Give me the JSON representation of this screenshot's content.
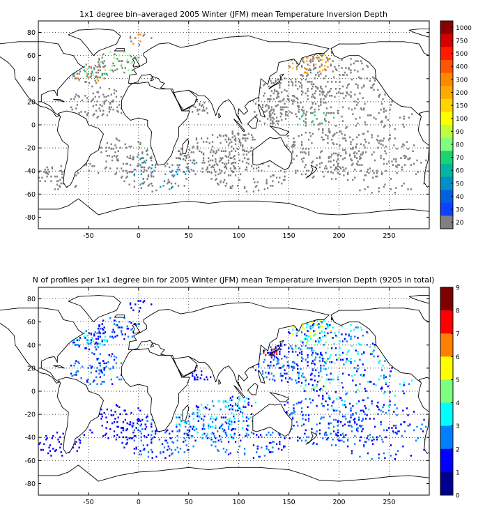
{
  "maps": [
    {
      "title": "1x1 degree bin–averaged 2005 Winter (JFM) mean Temperature Inversion Depth",
      "xlim": [
        -100,
        290
      ],
      "ylim": [
        -90,
        90
      ],
      "xticks": [
        -50,
        0,
        50,
        100,
        150,
        200,
        250
      ],
      "yticks": [
        80,
        60,
        40,
        20,
        0,
        -20,
        -40,
        -60,
        -80
      ],
      "colorbar": {
        "labels": [
          "1000",
          "750",
          "500",
          "400",
          "300",
          "200",
          "150",
          "100",
          "90",
          "80",
          "70",
          "60",
          "50",
          "40",
          "30",
          "20"
        ],
        "colors": [
          "#8b0000",
          "#d40000",
          "#ff1a00",
          "#ff5500",
          "#ff8800",
          "#ffaa00",
          "#ffd500",
          "#ffff00",
          "#bfff3f",
          "#80ff7f",
          "#1ad470",
          "#00b8a0",
          "#0090c8",
          "#0060e0",
          "#1040ff",
          "#808080"
        ]
      },
      "clusters": [
        {
          "lon": -50,
          "lat": 45,
          "r": 12,
          "count": 70,
          "colors": [
            "#808080",
            "#808080",
            "#808080",
            "#ff8800",
            "#ffd500",
            "#00b8a0"
          ]
        },
        {
          "lon": -20,
          "lat": 55,
          "r": 14,
          "count": 60,
          "colors": [
            "#808080",
            "#808080",
            "#80ff7f"
          ]
        },
        {
          "lon": 0,
          "lat": 75,
          "r": 8,
          "count": 12,
          "colors": [
            "#ff8800",
            "#808080"
          ]
        },
        {
          "lon": 170,
          "lat": 55,
          "r": 14,
          "count": 80,
          "colors": [
            "#808080",
            "#ff8800",
            "#ffaa00",
            "#ffd500",
            "#808080"
          ]
        },
        {
          "lon": 200,
          "lat": 45,
          "r": 30,
          "count": 150,
          "colors": [
            "#808080"
          ]
        },
        {
          "lon": 150,
          "lat": 25,
          "r": 25,
          "count": 150,
          "colors": [
            "#808080"
          ]
        },
        {
          "lon": 220,
          "lat": 10,
          "r": 40,
          "count": 160,
          "colors": [
            "#808080"
          ]
        },
        {
          "lon": 130,
          "lat": 10,
          "r": 12,
          "count": 50,
          "colors": [
            "#808080"
          ]
        },
        {
          "lon": -40,
          "lat": 20,
          "r": 20,
          "count": 90,
          "colors": [
            "#808080"
          ]
        },
        {
          "lon": -30,
          "lat": -25,
          "r": 25,
          "count": 100,
          "colors": [
            "#808080"
          ]
        },
        {
          "lon": 20,
          "lat": -40,
          "r": 25,
          "count": 120,
          "colors": [
            "#808080",
            "#808080",
            "#0090c8"
          ]
        },
        {
          "lon": 75,
          "lat": -25,
          "r": 25,
          "count": 150,
          "colors": [
            "#808080"
          ]
        },
        {
          "lon": 110,
          "lat": -40,
          "r": 25,
          "count": 110,
          "colors": [
            "#808080"
          ]
        },
        {
          "lon": 180,
          "lat": -25,
          "r": 30,
          "count": 140,
          "colors": [
            "#808080"
          ]
        },
        {
          "lon": 240,
          "lat": -35,
          "r": 35,
          "count": 140,
          "colors": [
            "#808080"
          ]
        },
        {
          "lon": -80,
          "lat": -45,
          "r": 15,
          "count": 50,
          "colors": [
            "#808080"
          ]
        },
        {
          "lon": 60,
          "lat": 15,
          "r": 8,
          "count": 20,
          "colors": [
            "#808080"
          ]
        },
        {
          "lon": 175,
          "lat": 5,
          "r": 12,
          "count": 25,
          "colors": [
            "#808080",
            "#1ad470"
          ]
        },
        {
          "lon": 100,
          "lat": -10,
          "r": 10,
          "count": 30,
          "colors": [
            "#808080"
          ]
        }
      ]
    },
    {
      "title": "N of profiles per 1x1 degree bin for 2005 Winter (JFM) mean Temperature Inversion Depth  (9205 in total)",
      "xlim": [
        -100,
        290
      ],
      "ylim": [
        -90,
        90
      ],
      "xticks": [
        -50,
        0,
        50,
        100,
        150,
        200,
        250
      ],
      "yticks": [
        80,
        60,
        40,
        20,
        0,
        -20,
        -40,
        -60,
        -80
      ],
      "colorbar": {
        "labels": [
          "9",
          "8",
          "7",
          "6",
          "5",
          "4",
          "3",
          "2",
          "1",
          "0"
        ],
        "colors": [
          "#7f0000",
          "#ff0000",
          "#ff7f00",
          "#ffff00",
          "#7fff7f",
          "#00ffff",
          "#007fff",
          "#0000ff",
          "#00008f"
        ]
      },
      "clusters": [
        {
          "lon": -50,
          "lat": 45,
          "r": 12,
          "count": 70,
          "colors": [
            "#0000ff",
            "#007fff",
            "#00ffff"
          ]
        },
        {
          "lon": -20,
          "lat": 55,
          "r": 14,
          "count": 60,
          "colors": [
            "#0000ff",
            "#007fff"
          ]
        },
        {
          "lon": 0,
          "lat": 75,
          "r": 8,
          "count": 12,
          "colors": [
            "#0000ff"
          ]
        },
        {
          "lon": 170,
          "lat": 55,
          "r": 14,
          "count": 80,
          "colors": [
            "#0000ff",
            "#00ffff",
            "#ffff00"
          ]
        },
        {
          "lon": 200,
          "lat": 45,
          "r": 30,
          "count": 150,
          "colors": [
            "#0000ff",
            "#007fff",
            "#00ffff",
            "#7fff7f"
          ]
        },
        {
          "lon": 150,
          "lat": 25,
          "r": 25,
          "count": 150,
          "colors": [
            "#0000ff",
            "#007fff"
          ]
        },
        {
          "lon": 220,
          "lat": 10,
          "r": 40,
          "count": 160,
          "colors": [
            "#0000ff",
            "#007fff",
            "#00ffff"
          ]
        },
        {
          "lon": 130,
          "lat": 35,
          "r": 5,
          "count": 20,
          "colors": [
            "#7f0000",
            "#ff0000",
            "#0000ff"
          ]
        },
        {
          "lon": -40,
          "lat": 20,
          "r": 20,
          "count": 90,
          "colors": [
            "#0000ff",
            "#007fff"
          ]
        },
        {
          "lon": -30,
          "lat": -25,
          "r": 25,
          "count": 100,
          "colors": [
            "#0000ff"
          ]
        },
        {
          "lon": 20,
          "lat": -40,
          "r": 25,
          "count": 120,
          "colors": [
            "#0000ff",
            "#007fff"
          ]
        },
        {
          "lon": 75,
          "lat": -25,
          "r": 25,
          "count": 150,
          "colors": [
            "#0000ff",
            "#007fff",
            "#00ffff"
          ]
        },
        {
          "lon": 110,
          "lat": -40,
          "r": 25,
          "count": 110,
          "colors": [
            "#0000ff",
            "#007fff"
          ]
        },
        {
          "lon": 180,
          "lat": -25,
          "r": 30,
          "count": 140,
          "colors": [
            "#0000ff",
            "#007fff"
          ]
        },
        {
          "lon": 240,
          "lat": -35,
          "r": 35,
          "count": 140,
          "colors": [
            "#0000ff",
            "#007fff"
          ]
        },
        {
          "lon": -80,
          "lat": -45,
          "r": 15,
          "count": 50,
          "colors": [
            "#0000ff"
          ]
        },
        {
          "lon": 60,
          "lat": 15,
          "r": 8,
          "count": 20,
          "colors": [
            "#0000ff"
          ]
        },
        {
          "lon": 175,
          "lat": 5,
          "r": 12,
          "count": 25,
          "colors": [
            "#0000ff",
            "#7fff7f"
          ]
        },
        {
          "lon": 100,
          "lat": -10,
          "r": 10,
          "count": 30,
          "colors": [
            "#0000ff",
            "#00ffff"
          ]
        }
      ]
    }
  ]
}
